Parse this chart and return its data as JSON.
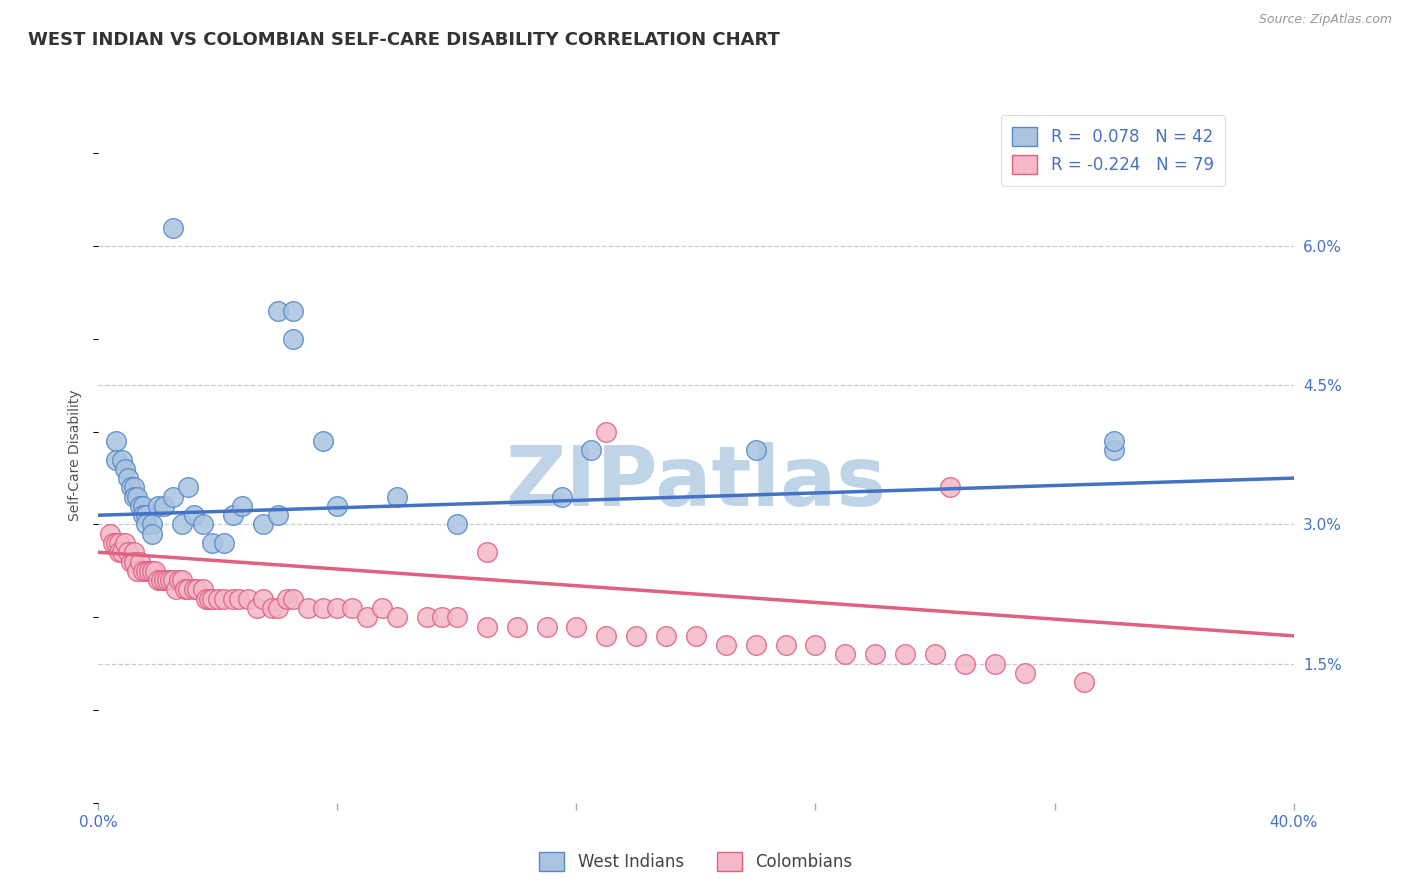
{
  "title": "WEST INDIAN VS COLOMBIAN SELF-CARE DISABILITY CORRELATION CHART",
  "source": "Source: ZipAtlas.com",
  "ylabel": "Self-Care Disability",
  "xlim": [
    0.0,
    0.4
  ],
  "ylim": [
    0.0,
    0.075
  ],
  "xtick_positions": [
    0.0,
    0.08,
    0.16,
    0.24,
    0.32,
    0.4
  ],
  "xtick_labels_shown": [
    "0.0%",
    "",
    "",
    "",
    "",
    "40.0%"
  ],
  "right_yticks": [
    0.015,
    0.03,
    0.045,
    0.06
  ],
  "right_yticklabels": [
    "1.5%",
    "3.0%",
    "4.5%",
    "6.0%"
  ],
  "grid_color": "#cccccc",
  "background_color": "#ffffff",
  "west_indian_face_color": "#aac4e0",
  "colombian_face_color": "#f4b8c8",
  "west_indian_edge_color": "#5588cc",
  "colombian_edge_color": "#e06080",
  "west_indian_line_color": "#4472c4",
  "colombian_line_color": "#e06080",
  "tick_color": "#4472c4",
  "R_west_indian": 0.078,
  "N_west_indian": 42,
  "R_colombian": -0.224,
  "N_colombian": 79,
  "wi_trend_x": [
    0.0,
    0.4
  ],
  "wi_trend_y": [
    0.031,
    0.035
  ],
  "col_trend_x": [
    0.0,
    0.4
  ],
  "col_trend_y": [
    0.027,
    0.018
  ],
  "west_indian_x": [
    0.025,
    0.06,
    0.065,
    0.065,
    0.006,
    0.006,
    0.008,
    0.009,
    0.01,
    0.011,
    0.012,
    0.012,
    0.013,
    0.014,
    0.015,
    0.015,
    0.016,
    0.016,
    0.018,
    0.018,
    0.02,
    0.022,
    0.025,
    0.028,
    0.03,
    0.032,
    0.035,
    0.038,
    0.042,
    0.045,
    0.048,
    0.055,
    0.06,
    0.075,
    0.08,
    0.1,
    0.12,
    0.155,
    0.165,
    0.22,
    0.34,
    0.34
  ],
  "west_indian_y": [
    0.062,
    0.053,
    0.053,
    0.05,
    0.039,
    0.037,
    0.037,
    0.036,
    0.035,
    0.034,
    0.034,
    0.033,
    0.033,
    0.032,
    0.032,
    0.031,
    0.031,
    0.03,
    0.03,
    0.029,
    0.032,
    0.032,
    0.033,
    0.03,
    0.034,
    0.031,
    0.03,
    0.028,
    0.028,
    0.031,
    0.032,
    0.03,
    0.031,
    0.039,
    0.032,
    0.033,
    0.03,
    0.033,
    0.038,
    0.038,
    0.038,
    0.039
  ],
  "colombian_x": [
    0.004,
    0.005,
    0.006,
    0.007,
    0.007,
    0.008,
    0.009,
    0.01,
    0.011,
    0.012,
    0.012,
    0.013,
    0.014,
    0.015,
    0.016,
    0.017,
    0.018,
    0.019,
    0.02,
    0.021,
    0.022,
    0.023,
    0.024,
    0.025,
    0.026,
    0.027,
    0.028,
    0.029,
    0.03,
    0.032,
    0.033,
    0.035,
    0.036,
    0.037,
    0.038,
    0.04,
    0.042,
    0.045,
    0.047,
    0.05,
    0.053,
    0.055,
    0.058,
    0.06,
    0.063,
    0.065,
    0.07,
    0.075,
    0.08,
    0.085,
    0.09,
    0.095,
    0.1,
    0.11,
    0.115,
    0.12,
    0.13,
    0.14,
    0.15,
    0.16,
    0.17,
    0.18,
    0.19,
    0.2,
    0.21,
    0.22,
    0.23,
    0.24,
    0.25,
    0.26,
    0.27,
    0.28,
    0.29,
    0.3,
    0.31,
    0.33,
    0.17,
    0.13,
    0.285
  ],
  "colombian_y": [
    0.029,
    0.028,
    0.028,
    0.028,
    0.027,
    0.027,
    0.028,
    0.027,
    0.026,
    0.027,
    0.026,
    0.025,
    0.026,
    0.025,
    0.025,
    0.025,
    0.025,
    0.025,
    0.024,
    0.024,
    0.024,
    0.024,
    0.024,
    0.024,
    0.023,
    0.024,
    0.024,
    0.023,
    0.023,
    0.023,
    0.023,
    0.023,
    0.022,
    0.022,
    0.022,
    0.022,
    0.022,
    0.022,
    0.022,
    0.022,
    0.021,
    0.022,
    0.021,
    0.021,
    0.022,
    0.022,
    0.021,
    0.021,
    0.021,
    0.021,
    0.02,
    0.021,
    0.02,
    0.02,
    0.02,
    0.02,
    0.019,
    0.019,
    0.019,
    0.019,
    0.018,
    0.018,
    0.018,
    0.018,
    0.017,
    0.017,
    0.017,
    0.017,
    0.016,
    0.016,
    0.016,
    0.016,
    0.015,
    0.015,
    0.014,
    0.013,
    0.04,
    0.027,
    0.034
  ],
  "watermark": "ZIPatlas",
  "watermark_color": "#c0d4e8",
  "title_fontsize": 13,
  "label_fontsize": 10,
  "tick_fontsize": 11
}
